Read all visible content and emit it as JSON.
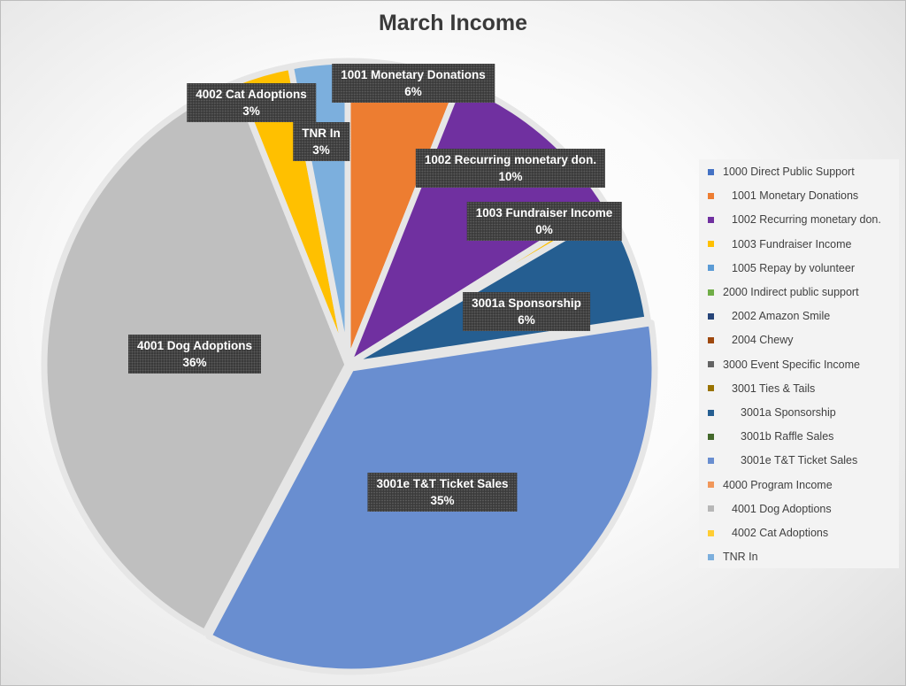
{
  "chart_data": {
    "type": "pie",
    "title": "March Income",
    "start_angle_deg": 0,
    "slices": [
      {
        "label": "1001 Monetary Donations",
        "value": 6,
        "data_label": "6%",
        "color": "#ED7D31"
      },
      {
        "label": "1002 Recurring monetary don.",
        "value": 10,
        "data_label": "10%",
        "color": "#7030A0"
      },
      {
        "label": "1003 Fundraiser Income",
        "value": 0.5,
        "data_label": "0%",
        "color": "#FFC000"
      },
      {
        "label": "3001a Sponsorship",
        "value": 6,
        "data_label": "6%",
        "color": "#255E91"
      },
      {
        "label": "3001e T&T Ticket Sales",
        "value": 35,
        "data_label": "35%",
        "color": "#698ED0"
      },
      {
        "label": "4001 Dog Adoptions",
        "value": 36,
        "data_label": "36%",
        "color": "#BFBFBF"
      },
      {
        "label": "4002 Cat Adoptions",
        "value": 3,
        "data_label": "3%",
        "color": "#FFC000"
      },
      {
        "label": "TNR In",
        "value": 3,
        "data_label": "3%",
        "color": "#7CAFDD"
      }
    ],
    "legend_position": "right",
    "legend": [
      {
        "label": "1000 Direct Public Support",
        "color": "#4472C4"
      },
      {
        "label": "1001 Monetary Donations",
        "color": "#ED7D31"
      },
      {
        "label": "1002 Recurring monetary don.",
        "color": "#7030A0"
      },
      {
        "label": "1003 Fundraiser Income",
        "color": "#FFC000"
      },
      {
        "label": "1005 Repay by volunteer",
        "color": "#5B9BD5"
      },
      {
        "label": "2000 Indirect public support",
        "color": "#70AD47"
      },
      {
        "label": "2002 Amazon Smile",
        "color": "#264478"
      },
      {
        "label": "2004 Chewy",
        "color": "#9E480E"
      },
      {
        "label": "3000 Event Specific Income",
        "color": "#636363"
      },
      {
        "label": "3001 Ties & Tails",
        "color": "#997300"
      },
      {
        "label": "3001a Sponsorship",
        "color": "#255E91"
      },
      {
        "label": "3001b Raffle Sales",
        "color": "#43682B"
      },
      {
        "label": "3001e T&T Ticket Sales",
        "color": "#698ED0"
      },
      {
        "label": "4000 Program Income",
        "color": "#F1975A"
      },
      {
        "label": "4001 Dog Adoptions",
        "color": "#B7B7B7"
      },
      {
        "label": "4002 Cat Adoptions",
        "color": "#FFCD33"
      },
      {
        "label": "TNR In",
        "color": "#7CAFDD"
      }
    ]
  }
}
